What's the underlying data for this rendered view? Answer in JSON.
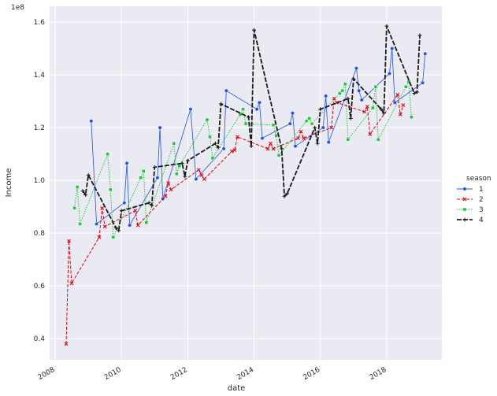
{
  "chart_data": {
    "type": "line",
    "title": "",
    "xlabel": "date",
    "ylabel": "Income",
    "y_offset_label": "1e8",
    "xlim": [
      "2007-11-01",
      "2019-09-01"
    ],
    "ylim": [
      0.32,
      1.66
    ],
    "x_ticks": [
      "2008",
      "2010",
      "2012",
      "2014",
      "2016",
      "2018"
    ],
    "y_ticks": [
      "0.4",
      "0.6",
      "0.8",
      "1.0",
      "1.2",
      "1.4",
      "1.6"
    ],
    "grid": true,
    "legend": {
      "title": "season",
      "placement": "right"
    },
    "series": [
      {
        "name": "1",
        "color": "#1f4ff0",
        "dash": "",
        "marker": "circle",
        "points": [
          [
            "2009-02-01",
            1.225
          ],
          [
            "2009-04-01",
            0.835
          ],
          [
            "2010-02-01",
            0.915
          ],
          [
            "2010-03-01",
            1.065
          ],
          [
            "2010-04-01",
            0.83
          ],
          [
            "2011-02-01",
            1.01
          ],
          [
            "2011-03-01",
            1.2
          ],
          [
            "2011-04-01",
            0.93
          ],
          [
            "2012-02-01",
            1.27
          ],
          [
            "2012-04-01",
            1.005
          ],
          [
            "2013-02-01",
            1.12
          ],
          [
            "2013-03-01",
            1.34
          ],
          [
            "2014-02-01",
            1.27
          ],
          [
            "2014-03-01",
            1.295
          ],
          [
            "2014-04-01",
            1.16
          ],
          [
            "2015-02-01",
            1.215
          ],
          [
            "2015-03-01",
            1.255
          ],
          [
            "2015-04-01",
            1.13
          ],
          [
            "2016-02-01",
            1.2
          ],
          [
            "2016-03-01",
            1.32
          ],
          [
            "2016-04-01",
            1.145
          ],
          [
            "2017-02-01",
            1.425
          ],
          [
            "2017-03-01",
            1.34
          ],
          [
            "2017-04-01",
            1.305
          ],
          [
            "2018-02-01",
            1.405
          ],
          [
            "2018-03-01",
            1.5
          ],
          [
            "2018-04-01",
            1.295
          ],
          [
            "2019-02-01",
            1.37
          ],
          [
            "2019-03-01",
            1.48
          ]
        ]
      },
      {
        "name": "2",
        "color": "#e8000b",
        "dash": "4,2",
        "marker": "x",
        "points": [
          [
            "2008-05-01",
            0.38
          ],
          [
            "2008-06-01",
            0.77
          ],
          [
            "2008-07-01",
            0.61
          ],
          [
            "2009-05-01",
            0.785
          ],
          [
            "2009-06-01",
            0.895
          ],
          [
            "2009-07-01",
            0.825
          ],
          [
            "2010-06-01",
            0.885
          ],
          [
            "2010-07-01",
            0.83
          ],
          [
            "2011-05-01",
            0.94
          ],
          [
            "2011-06-01",
            0.99
          ],
          [
            "2011-07-01",
            0.965
          ],
          [
            "2012-05-01",
            1.04
          ],
          [
            "2012-06-01",
            1.02
          ],
          [
            "2012-07-01",
            1.005
          ],
          [
            "2013-05-01",
            1.11
          ],
          [
            "2013-06-01",
            1.115
          ],
          [
            "2013-07-01",
            1.165
          ],
          [
            "2014-06-01",
            1.12
          ],
          [
            "2014-07-01",
            1.14
          ],
          [
            "2014-08-01",
            1.12
          ],
          [
            "2015-05-01",
            1.16
          ],
          [
            "2015-06-01",
            1.185
          ],
          [
            "2015-07-01",
            1.16
          ],
          [
            "2016-05-01",
            1.2
          ],
          [
            "2016-06-01",
            1.31
          ],
          [
            "2016-07-01",
            1.295
          ],
          [
            "2017-05-01",
            1.26
          ],
          [
            "2017-06-01",
            1.28
          ],
          [
            "2017-07-01",
            1.175
          ],
          [
            "2018-05-01",
            1.325
          ],
          [
            "2018-06-01",
            1.25
          ],
          [
            "2018-07-01",
            1.285
          ]
        ]
      },
      {
        "name": "3",
        "color": "#1ac938",
        "dash": "1.5,1.5",
        "marker": "square",
        "points": [
          [
            "2008-08-01",
            0.895
          ],
          [
            "2008-09-01",
            0.975
          ],
          [
            "2008-10-01",
            0.835
          ],
          [
            "2009-08-01",
            1.1
          ],
          [
            "2009-09-01",
            0.965
          ],
          [
            "2009-10-01",
            0.785
          ],
          [
            "2010-08-01",
            1.01
          ],
          [
            "2010-09-01",
            1.035
          ],
          [
            "2010-10-01",
            0.84
          ],
          [
            "2011-08-01",
            1.14
          ],
          [
            "2011-09-01",
            1.025
          ],
          [
            "2011-10-01",
            1.055
          ],
          [
            "2012-08-01",
            1.23
          ],
          [
            "2012-09-01",
            1.165
          ],
          [
            "2012-10-01",
            1.085
          ],
          [
            "2013-08-01",
            1.25
          ],
          [
            "2013-09-01",
            1.27
          ],
          [
            "2013-10-01",
            1.215
          ],
          [
            "2014-08-01",
            1.21
          ],
          [
            "2014-09-01",
            1.17
          ],
          [
            "2014-10-01",
            1.095
          ],
          [
            "2015-08-01",
            1.225
          ],
          [
            "2015-09-01",
            1.235
          ],
          [
            "2015-10-01",
            1.215
          ],
          [
            "2016-08-01",
            1.33
          ],
          [
            "2016-09-01",
            1.34
          ],
          [
            "2016-10-01",
            1.365
          ],
          [
            "2016-11-01",
            1.155
          ],
          [
            "2017-08-01",
            1.275
          ],
          [
            "2017-09-01",
            1.355
          ],
          [
            "2017-10-01",
            1.155
          ],
          [
            "2018-08-01",
            1.355
          ],
          [
            "2018-09-01",
            1.375
          ],
          [
            "2018-10-01",
            1.24
          ]
        ]
      },
      {
        "name": "4",
        "color": "#1a1a1a",
        "dash": "6,2",
        "marker": "plus",
        "points": [
          [
            "2008-11-01",
            0.96
          ],
          [
            "2008-12-01",
            0.945
          ],
          [
            "2009-01-01",
            1.02
          ],
          [
            "2009-11-01",
            0.82
          ],
          [
            "2009-12-01",
            0.81
          ],
          [
            "2010-01-01",
            0.885
          ],
          [
            "2010-11-01",
            0.915
          ],
          [
            "2010-12-01",
            0.905
          ],
          [
            "2011-01-01",
            1.05
          ],
          [
            "2011-11-01",
            1.065
          ],
          [
            "2011-12-01",
            1.015
          ],
          [
            "2012-01-01",
            1.075
          ],
          [
            "2012-11-01",
            1.14
          ],
          [
            "2012-12-01",
            1.125
          ],
          [
            "2013-01-01",
            1.29
          ],
          [
            "2013-11-01",
            1.24
          ],
          [
            "2013-12-01",
            1.13
          ],
          [
            "2014-01-01",
            1.57
          ],
          [
            "2014-11-01",
            1.12
          ],
          [
            "2014-12-01",
            0.94
          ],
          [
            "2015-01-01",
            0.95
          ],
          [
            "2015-11-01",
            1.2
          ],
          [
            "2015-12-01",
            1.14
          ],
          [
            "2016-01-01",
            1.27
          ],
          [
            "2016-11-01",
            1.31
          ],
          [
            "2016-12-01",
            1.235
          ],
          [
            "2017-01-01",
            1.385
          ],
          [
            "2017-11-01",
            1.27
          ],
          [
            "2017-12-01",
            1.255
          ],
          [
            "2018-01-01",
            1.585
          ],
          [
            "2018-11-01",
            1.33
          ],
          [
            "2018-12-01",
            1.335
          ],
          [
            "2019-01-01",
            1.55
          ]
        ]
      }
    ]
  }
}
